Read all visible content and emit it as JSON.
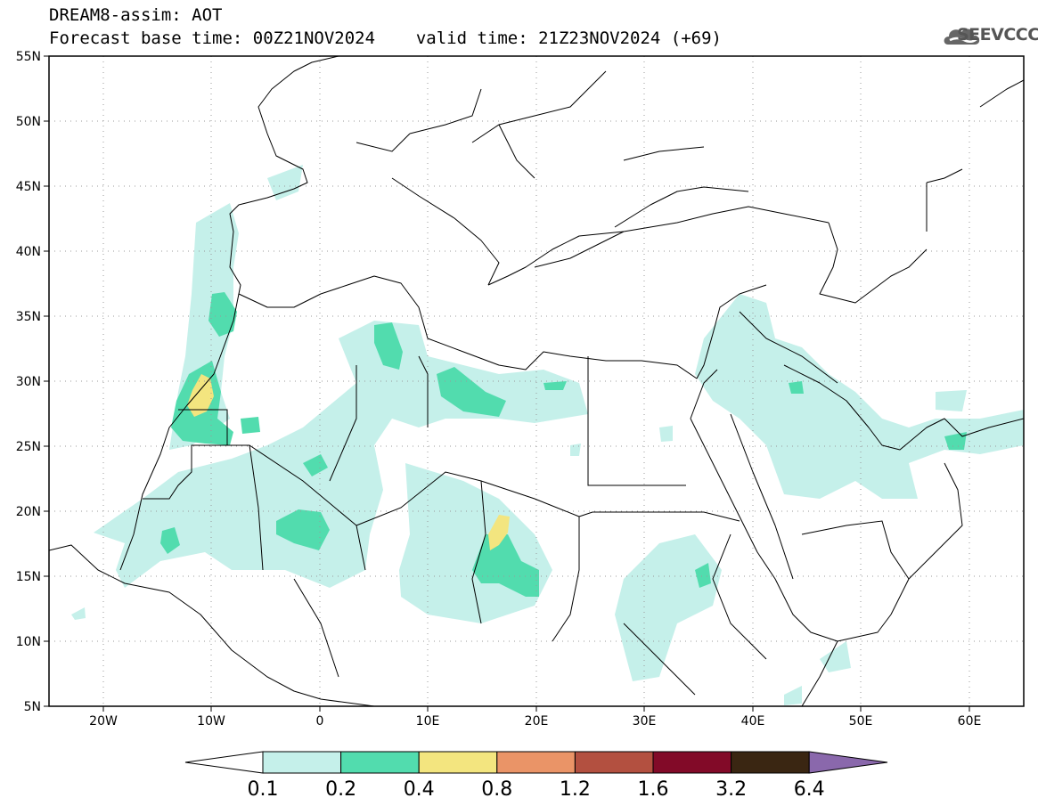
{
  "header": {
    "line1": "DREAM8-assim: AOT",
    "line2_left": "Forecast base time: 00Z21NOV2024",
    "line2_right": "valid time: 21Z23NOV2024 (+69)"
  },
  "logo": {
    "icon": "cloud-logo-icon",
    "text": "SEEVCCC"
  },
  "map": {
    "lon_range": [
      -25,
      65
    ],
    "lat_range": [
      5,
      55
    ],
    "lat_ticks": [
      "55N",
      "50N",
      "45N",
      "40N",
      "35N",
      "30N",
      "25N",
      "20N",
      "15N",
      "10N",
      "5N"
    ],
    "lon_ticks": [
      "20W",
      "10W",
      "0",
      "10E",
      "20E",
      "30E",
      "40E",
      "50E",
      "60E"
    ],
    "grid": true
  },
  "colorbar": {
    "labels": [
      "0.1",
      "0.2",
      "0.4",
      "0.8",
      "1.2",
      "1.6",
      "3.2",
      "6.4"
    ],
    "colors": [
      "#ffffff",
      "#c5f0ea",
      "#52dcae",
      "#f3e57f",
      "#ea9467",
      "#b35040",
      "#820a28",
      "#3a2612",
      "#8a68ac"
    ]
  }
}
